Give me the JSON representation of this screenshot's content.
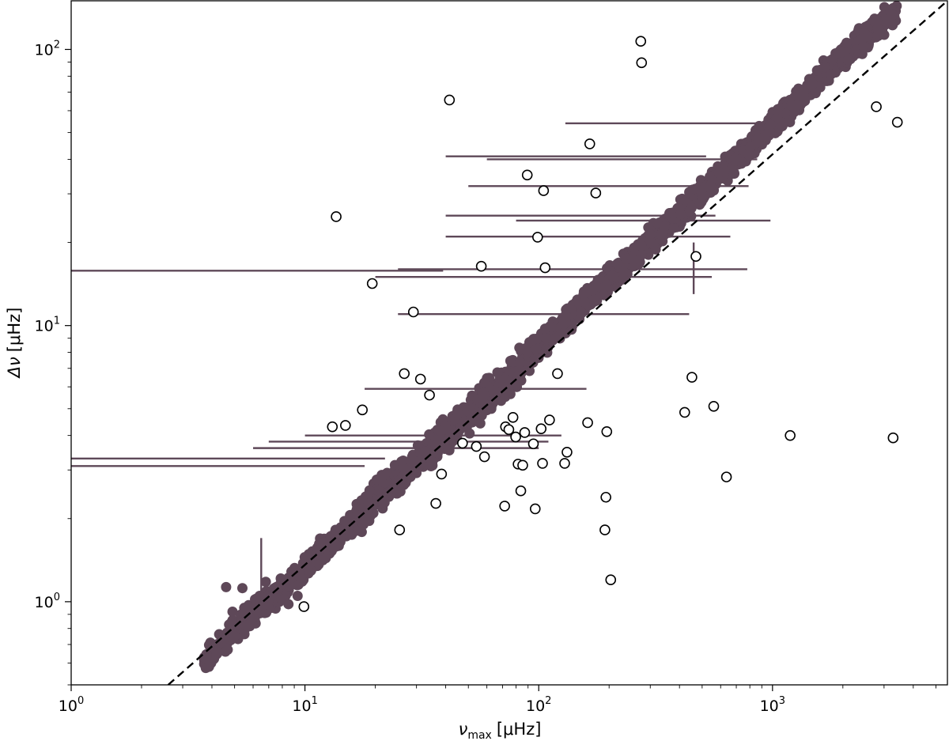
{
  "chart_data": {
    "type": "scatter",
    "title": "",
    "xlabel": "ν_max [μHz]",
    "ylabel": "Δν [μHz]",
    "xlabel_parts": {
      "symbol": "ν",
      "sub": "max",
      "unit": "[μHz]"
    },
    "ylabel_parts": {
      "symbol": "Δν",
      "unit": "[μHz]"
    },
    "xscale": "log",
    "yscale": "log",
    "xlim": [
      1,
      5600
    ],
    "ylim": [
      0.5,
      150
    ],
    "xticks": [
      {
        "base": "10",
        "exp": "0",
        "value": 1
      },
      {
        "base": "10",
        "exp": "1",
        "value": 10
      },
      {
        "base": "10",
        "exp": "2",
        "value": 100
      },
      {
        "base": "10",
        "exp": "3",
        "value": 1000
      }
    ],
    "yticks": [
      {
        "base": "10",
        "exp": "0",
        "value": 1
      },
      {
        "base": "10",
        "exp": "1",
        "value": 10
      },
      {
        "base": "10",
        "exp": "2",
        "value": 100
      }
    ],
    "grid": false,
    "legend": "none",
    "colors": {
      "filled": "#5e4858",
      "open_edge": "#000000",
      "reference_line": "#000000"
    },
    "reference_line": {
      "style": "dashed",
      "points": [
        [
          2.6,
          0.5
        ],
        [
          5600,
          150
        ]
      ]
    },
    "series": [
      {
        "marker": "filled-circle",
        "trend": {
          "x_range": [
            3.7,
            3400
          ],
          "points": [
            [
              3.7,
              0.62
            ],
            [
              5,
              0.78
            ],
            [
              10,
              1.33
            ],
            [
              20,
              2.35
            ],
            [
              50,
              4.7
            ],
            [
              100,
              8.3
            ],
            [
              200,
              14.7
            ],
            [
              400,
              25.5
            ],
            [
              1000,
              53
            ],
            [
              2000,
              95
            ],
            [
              3400,
              140
            ]
          ]
        },
        "points": [
          [
            3.8,
            0.62
          ],
          [
            4.6,
            1.13
          ],
          [
            4.9,
            0.92
          ],
          [
            5.0,
            0.75
          ],
          [
            5.4,
            1.12
          ],
          [
            5.6,
            0.82
          ],
          [
            6.0,
            0.88
          ],
          [
            6.8,
            1.18
          ],
          [
            7.4,
            1.12
          ],
          [
            8.1,
            1.02
          ],
          [
            8.5,
            0.98
          ],
          [
            9.3,
            1.05
          ],
          [
            5.5,
            0.95
          ],
          [
            6.4,
            1.05
          ]
        ],
        "errorbars": [
          {
            "x": 1.0,
            "y": 15.8,
            "xerr_low": 0,
            "xerr_high": 38
          },
          {
            "x": 1.0,
            "y": 3.3,
            "xerr_low": 0,
            "xerr_high": 21
          },
          {
            "x": 1.0,
            "y": 3.1,
            "xerr_low": 0,
            "xerr_high": 17
          },
          {
            "x": 160,
            "y": 41,
            "xerr_low": 120,
            "xerr_high": 360
          },
          {
            "x": 250,
            "y": 32,
            "xerr_low": 200,
            "xerr_high": 540
          },
          {
            "x": 260,
            "y": 16,
            "xerr_low": 235,
            "xerr_high": 520
          },
          {
            "x": 230,
            "y": 21,
            "xerr_low": 190,
            "xerr_high": 430
          },
          {
            "x": 300,
            "y": 40,
            "xerr_low": 240,
            "xerr_high": 560
          },
          {
            "x": 180,
            "y": 25,
            "xerr_low": 140,
            "xerr_high": 390
          },
          {
            "x": 150,
            "y": 15,
            "xerr_low": 130,
            "xerr_high": 400
          },
          {
            "x": 120,
            "y": 11,
            "xerr_low": 95,
            "xerr_high": 320
          },
          {
            "x": 60,
            "y": 5.9,
            "xerr_low": 42,
            "xerr_high": 100
          },
          {
            "x": 50,
            "y": 4.0,
            "xerr_low": 40,
            "xerr_high": 75
          },
          {
            "x": 45,
            "y": 3.8,
            "xerr_low": 38,
            "xerr_high": 65
          },
          {
            "x": 40,
            "y": 3.6,
            "xerr_low": 34,
            "xerr_high": 60
          },
          {
            "x": 480,
            "y": 54,
            "xerr_low": 350,
            "xerr_high": 650
          },
          {
            "x": 380,
            "y": 24,
            "xerr_low": 300,
            "xerr_high": 600
          },
          {
            "x": 6.5,
            "y": 1.2,
            "yerr_low": 0.3,
            "yerr_high": 0.5
          },
          {
            "x": 3.8,
            "y": 0.62,
            "yerr_low": 0.05,
            "yerr_high": 0.08
          },
          {
            "x": 460,
            "y": 16,
            "yerr_low": 3,
            "yerr_high": 4
          }
        ]
      },
      {
        "marker": "open-circle",
        "points": [
          [
            9.9,
            0.96
          ],
          [
            13.1,
            4.3
          ],
          [
            13.6,
            24.8
          ],
          [
            14.9,
            4.35
          ],
          [
            17.6,
            4.95
          ],
          [
            19.4,
            14.2
          ],
          [
            25.4,
            1.82
          ],
          [
            26.6,
            6.7
          ],
          [
            29.1,
            11.2
          ],
          [
            31.2,
            6.4
          ],
          [
            34.1,
            5.6
          ],
          [
            36.3,
            2.27
          ],
          [
            38.4,
            2.9
          ],
          [
            41.5,
            65.6
          ],
          [
            47.2,
            3.75
          ],
          [
            54.1,
            3.65
          ],
          [
            56.8,
            16.4
          ],
          [
            58.6,
            3.35
          ],
          [
            71.5,
            2.22
          ],
          [
            72.1,
            4.3
          ],
          [
            74.5,
            4.2
          ],
          [
            77.6,
            4.65
          ],
          [
            79.7,
            3.95
          ],
          [
            81.6,
            3.15
          ],
          [
            83.8,
            2.52
          ],
          [
            85.4,
            3.12
          ],
          [
            87.1,
            4.1
          ],
          [
            89.3,
            35.1
          ],
          [
            94.9,
            3.73
          ],
          [
            96.6,
            2.17
          ],
          [
            98.9,
            20.9
          ],
          [
            102.4,
            4.23
          ],
          [
            103.8,
            3.17
          ],
          [
            104.9,
            30.8
          ],
          [
            106.5,
            16.2
          ],
          [
            111.2,
            4.55
          ],
          [
            120.3,
            6.7
          ],
          [
            129.1,
            3.17
          ],
          [
            132.1,
            3.48
          ],
          [
            161.9,
            4.45
          ],
          [
            165.3,
            45.5
          ],
          [
            175.4,
            30.2
          ],
          [
            191.9,
            1.82
          ],
          [
            193.8,
            2.39
          ],
          [
            195.5,
            4.13
          ],
          [
            203.2,
            1.2
          ],
          [
            273.2,
            107
          ],
          [
            275.4,
            89.5
          ],
          [
            421.1,
            4.85
          ],
          [
            452.1,
            6.5
          ],
          [
            470.4,
            17.8
          ],
          [
            560.4,
            5.1
          ],
          [
            635.3,
            2.83
          ],
          [
            1190,
            4.0
          ],
          [
            2780,
            62
          ],
          [
            3280,
            3.92
          ],
          [
            3420,
            54.5
          ]
        ]
      }
    ]
  }
}
